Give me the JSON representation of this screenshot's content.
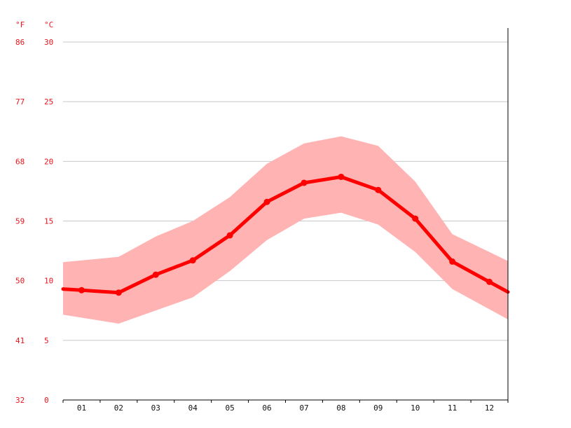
{
  "chart_data": {
    "type": "line",
    "units": {
      "fahrenheit": "°F",
      "celsius": "°C"
    },
    "y_celsius_ticks": [
      "0",
      "5",
      "10",
      "15",
      "20",
      "25",
      "30"
    ],
    "y_fahrenheit_ticks": [
      "32",
      "41",
      "50",
      "59",
      "68",
      "77",
      "86"
    ],
    "categories": [
      "01",
      "02",
      "03",
      "04",
      "05",
      "06",
      "07",
      "08",
      "09",
      "10",
      "11",
      "12"
    ],
    "ylim": [
      0,
      30
    ],
    "grid": true,
    "series": [
      {
        "values": [
          9.2,
          9.0,
          10.5,
          11.7,
          13.8,
          16.6,
          18.2,
          18.7,
          17.6,
          15.2,
          11.6,
          9.9
        ]
      }
    ],
    "band": {
      "upper": [
        11.7,
        12.0,
        13.7,
        15.0,
        17.0,
        19.8,
        21.5,
        22.1,
        21.3,
        18.3,
        13.9,
        12.4
      ],
      "lower": [
        6.9,
        6.4,
        7.5,
        8.6,
        10.8,
        13.4,
        15.2,
        15.7,
        14.7,
        12.4,
        9.3,
        7.6
      ]
    },
    "colors": {
      "line": "#ff0000",
      "band": "#ffb3b3",
      "grid": "#c9c9c9",
      "tick_text": "#e8141c",
      "axis": "#000000"
    }
  }
}
